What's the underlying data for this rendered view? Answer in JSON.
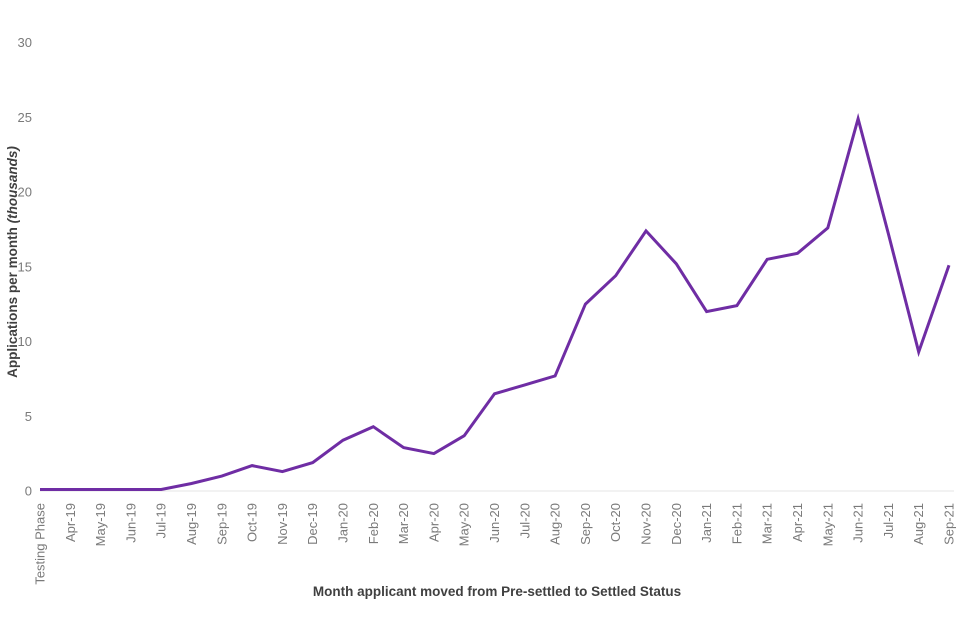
{
  "chart_data": {
    "type": "line",
    "title": "",
    "xlabel": "Month applicant moved from Pre-settled to Settled Status",
    "ylabel": "Applications per month (thousands)",
    "ylabel_parts": {
      "prefix": "Applications per month ",
      "italic": "(thousands)",
      "suffix": ""
    },
    "categories": [
      "Testing Phase",
      "Apr-19",
      "May-19",
      "Jun-19",
      "Jul-19",
      "Aug-19",
      "Sep-19",
      "Oct-19",
      "Nov-19",
      "Dec-19",
      "Jan-20",
      "Feb-20",
      "Mar-20",
      "Apr-20",
      "May-20",
      "Jun-20",
      "Jul-20",
      "Aug-20",
      "Sep-20",
      "Oct-20",
      "Nov-20",
      "Dec-20",
      "Jan-21",
      "Feb-21",
      "Mar-21",
      "Apr-21",
      "May-21",
      "Jun-21",
      "Jul-21",
      "Aug-21",
      "Sep-21"
    ],
    "values": [
      0.1,
      0.1,
      0.1,
      0.1,
      0.1,
      0.5,
      1.0,
      1.7,
      1.3,
      1.9,
      3.4,
      4.3,
      2.9,
      2.5,
      3.7,
      6.5,
      7.1,
      7.7,
      12.5,
      14.4,
      17.4,
      15.2,
      12.0,
      12.4,
      15.5,
      15.9,
      17.6,
      24.9,
      17.2,
      9.3,
      15.1
    ],
    "y_ticks": [
      0,
      5,
      10,
      15,
      20,
      25,
      30
    ],
    "ylim": [
      0,
      30
    ],
    "grid": false,
    "legend": "none",
    "line_color": "#6F2DA4",
    "baseline_color": "#ebebeb",
    "tick_label_color": "#7a7a7a",
    "axis_title_color": "#404040"
  }
}
